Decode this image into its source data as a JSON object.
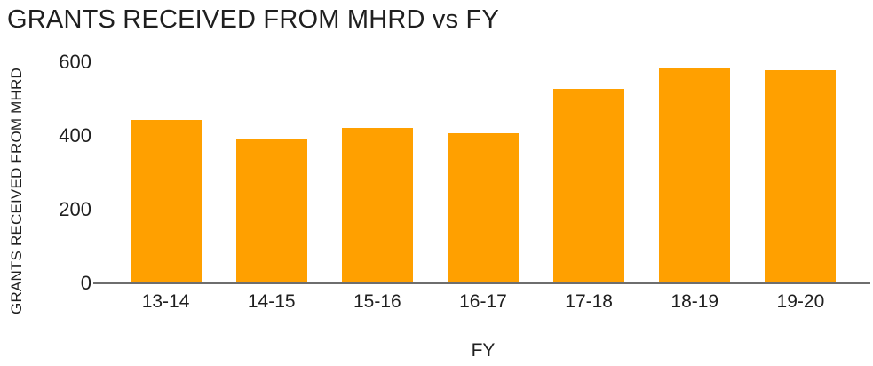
{
  "chart": {
    "title": "GRANTS RECEIVED FROM MHRD vs FY",
    "y_axis_title": "GRANTS RECEIVED FROM MHRD",
    "x_axis_title": "FY"
  },
  "colors": {
    "bar": "#FFA000",
    "axis_line": "#6e6e6e",
    "text": "#1f1f1f",
    "background": "#ffffff"
  },
  "chart_data": {
    "type": "bar",
    "title": "GRANTS RECEIVED FROM MHRD vs FY",
    "xlabel": "FY",
    "ylabel": "GRANTS RECEIVED FROM MHRD",
    "categories": [
      "13-14",
      "14-15",
      "15-16",
      "16-17",
      "17-18",
      "18-19",
      "19-20"
    ],
    "values": [
      440,
      390,
      420,
      405,
      525,
      580,
      575
    ],
    "ylim": [
      0,
      600
    ],
    "yticks": [
      0,
      200,
      400,
      600
    ],
    "bar_color": "#FFA000",
    "grid": false,
    "legend": false
  }
}
